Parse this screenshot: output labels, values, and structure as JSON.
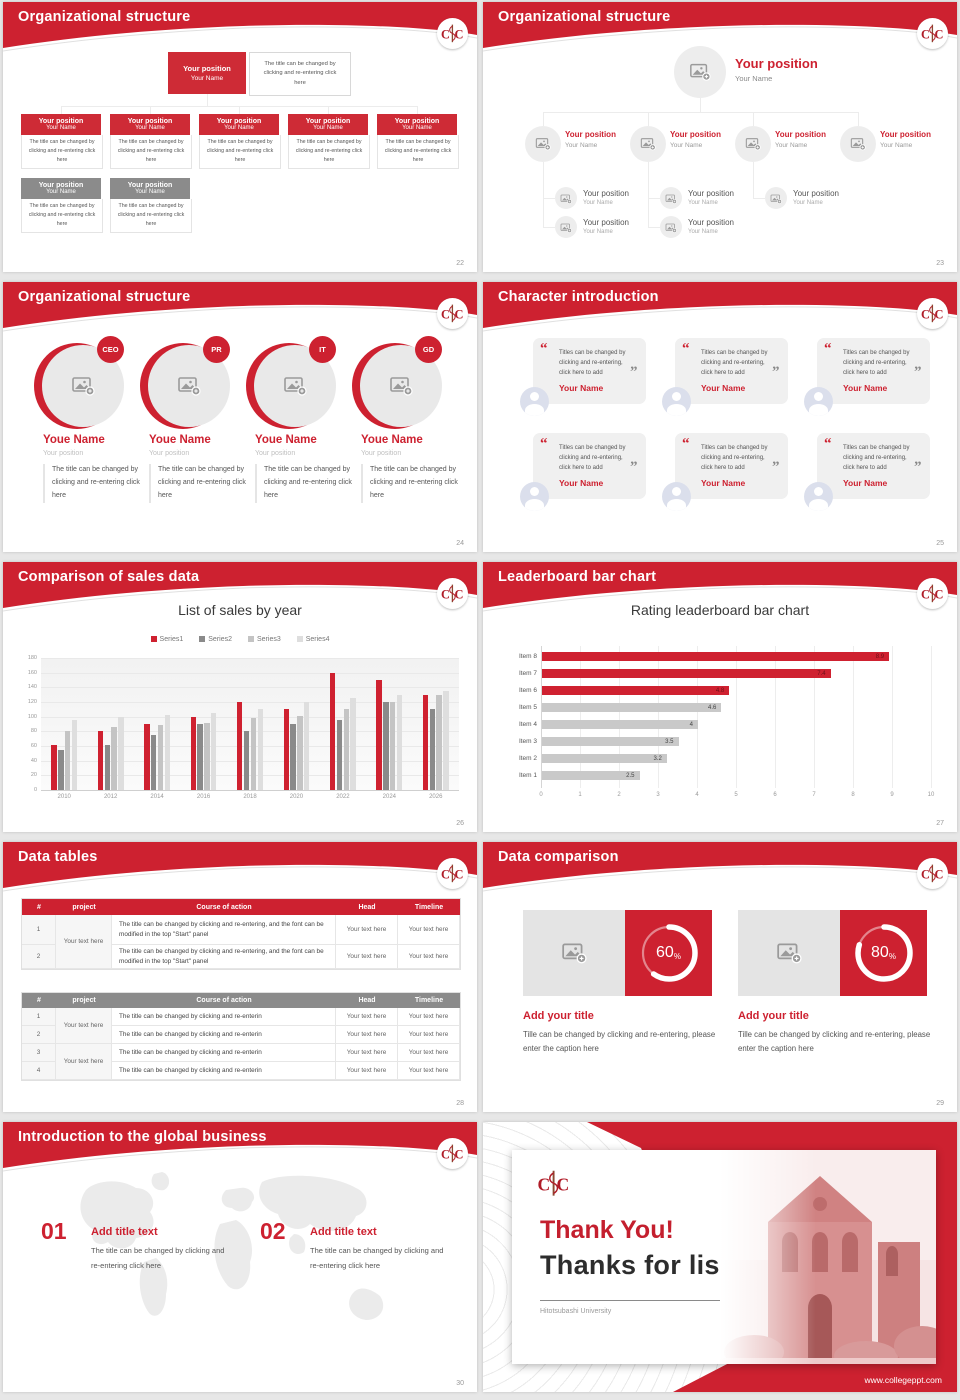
{
  "theme": {
    "red": "#cd2130",
    "red_box": "#ce2b36",
    "gray_box": "#8b8b8b",
    "panel_gray": "#e4e4e4",
    "text_dark": "#444444",
    "text_gray": "#999999"
  },
  "common": {
    "position_label": "Your position",
    "name_label": "Your Name",
    "caption": "The title can be changed by clicking and re-entering click here"
  },
  "slides": {
    "org1": {
      "title": "Organizational structure",
      "page": "22",
      "top_caption": "The title can be changed by clicking and re-entering click here",
      "red_nodes": 5,
      "gray_nodes": 2
    },
    "org2": {
      "title": "Organizational structure",
      "page": "23",
      "main_nodes": 4,
      "sub_row1": 3,
      "sub_row2": 2
    },
    "org3": {
      "title": "Organizational structure",
      "page": "24",
      "badges": [
        "CEO",
        "PR",
        "IT",
        "GD"
      ],
      "name": "Youe Name",
      "position": "Your position",
      "caption": "The title can be changed by clicking and re-entering click here"
    },
    "character": {
      "title": "Character introduction",
      "page": "25",
      "cards": 6,
      "quote": "Titles can be changed by clicking and re-entering, click here to add",
      "name": "Your Name"
    },
    "sales": {
      "title": "Comparison of sales data",
      "page": "26"
    },
    "leaderboard": {
      "title": "Leaderboard bar chart",
      "page": "27"
    },
    "tables": {
      "title": "Data tables",
      "page": "28",
      "columns": [
        "#",
        "project",
        "Course of action",
        "Head",
        "Timeline"
      ],
      "table1": {
        "nums": [
          "1",
          "2"
        ],
        "project": "Your text here",
        "course": "The title can be changed by clicking and re-entering, and the font can be modified in the top \"Start\" panel",
        "cell": "Your text here"
      },
      "table2": {
        "nums": [
          "1",
          "2",
          "3",
          "4"
        ],
        "project": "Your text here",
        "course": "The title can be changed by clicking and re-enterin",
        "cell": "Your text here"
      }
    },
    "comparison": {
      "title": "Data comparison",
      "page": "29",
      "item_title": "Add your title",
      "item_caption": "Tille can be changed by clicking and re-entering, please enter the caption here"
    },
    "global": {
      "title": "Introduction to the global business",
      "page": "30",
      "items": [
        {
          "number": "01",
          "heading": "Add title text",
          "body": "The title can be changed by clicking and re-entering click here"
        },
        {
          "number": "02",
          "heading": "Add title text",
          "body": "The title can be changed by clicking and re-entering click here"
        }
      ]
    },
    "thanks": {
      "title_line1": "Thank You!",
      "title_line2": "Thanks for listening!",
      "university": "Hitotsubashi University",
      "website": "www.collegeppt.com"
    }
  },
  "chart_data": [
    {
      "type": "bar",
      "title": "List of sales by year",
      "categories": [
        "2010",
        "2012",
        "2014",
        "2016",
        "2018",
        "2020",
        "2022",
        "2024",
        "2026"
      ],
      "series": [
        {
          "name": "Series1",
          "color": "#cf2130",
          "values": [
            62,
            80,
            90,
            100,
            120,
            110,
            160,
            150,
            130
          ]
        },
        {
          "name": "Series2",
          "color": "#8a8a8a",
          "values": [
            55,
            62,
            75,
            90,
            80,
            90,
            96,
            120,
            110
          ]
        },
        {
          "name": "Series3",
          "color": "#c4c4c4",
          "values": [
            80,
            86,
            88,
            92,
            98,
            101,
            110,
            120,
            130
          ]
        },
        {
          "name": "Series4",
          "color": "#dedede",
          "values": [
            95,
            99,
            102,
            105,
            110,
            120,
            126,
            130,
            135
          ]
        }
      ],
      "ylim": [
        0,
        180
      ],
      "ytick": 20,
      "grid": true,
      "legend_position": "top"
    },
    {
      "type": "bar-horizontal",
      "title": "Rating leaderboard bar chart",
      "categories": [
        "Item 8",
        "Item 7",
        "Item 6",
        "Item 5",
        "Item 4",
        "Item 3",
        "Item 2",
        "Item 1"
      ],
      "values": [
        8.9,
        7.4,
        4.8,
        4.6,
        4,
        3.5,
        3.2,
        2.5
      ],
      "labels": [
        "8.9",
        "7.4",
        "4.8",
        "4.6",
        "4",
        "3.5",
        "3.2",
        "2.5"
      ],
      "bar_colors": [
        "#cf2130",
        "#cf2130",
        "#cf2130",
        "#c9c9c9",
        "#c9c9c9",
        "#c9c9c9",
        "#c9c9c9",
        "#c9c9c9"
      ],
      "xlim": [
        0,
        10
      ],
      "xtick": 1,
      "grid": true
    },
    {
      "type": "donut",
      "values": [
        60,
        80
      ],
      "labels": [
        "60%",
        "80%"
      ]
    }
  ]
}
